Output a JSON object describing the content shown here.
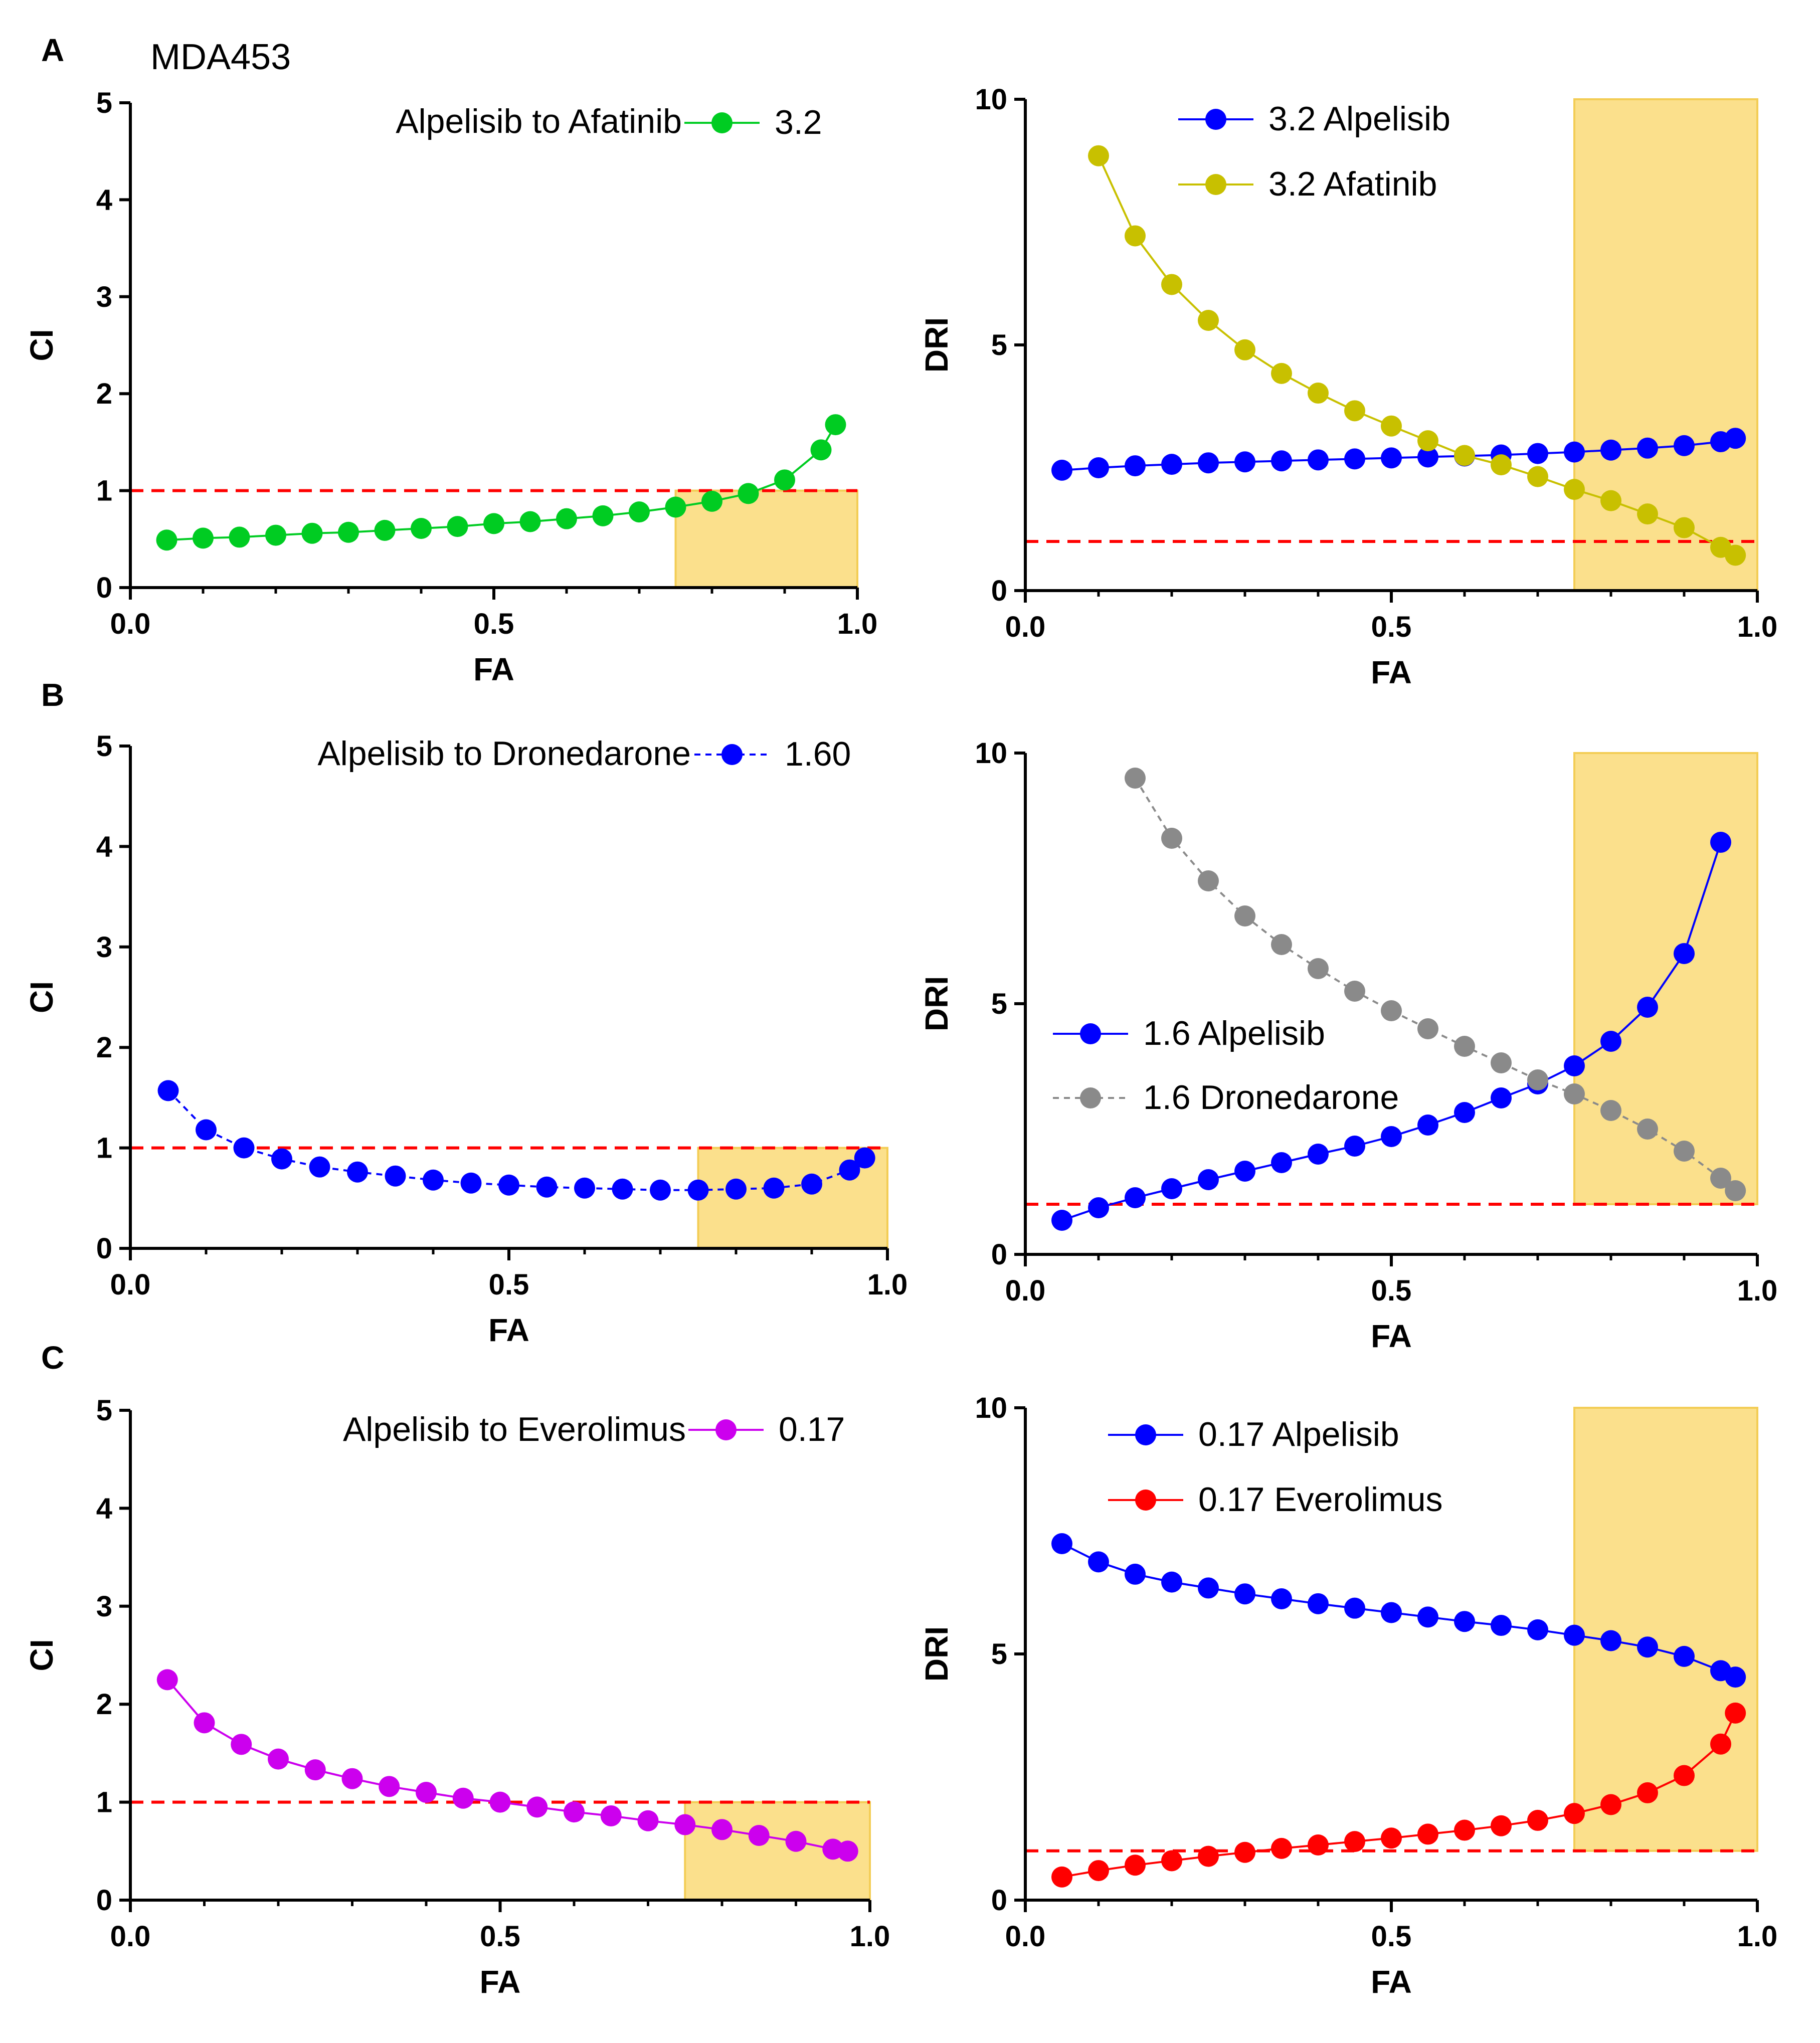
{
  "figure_title": "MDA453",
  "panel_labels": [
    "A",
    "B",
    "C"
  ],
  "colors": {
    "threshold": "#ff0000",
    "highlight": "#fbe08c",
    "highlight_edge": "#f3cd55",
    "green": "#00cc22",
    "blue": "#0000ff",
    "olive": "#c8c000",
    "gray": "#8a8a8a",
    "magenta": "#cc00ee",
    "red": "#ff0000"
  },
  "chart_data": [
    {
      "id": "A-CI",
      "type": "line",
      "panel": "A",
      "xlabel": "FA",
      "ylabel": "CI",
      "xlim": [
        0,
        1
      ],
      "ylim": [
        0,
        5
      ],
      "xticks": [
        "0.0",
        "0.5",
        "1.0"
      ],
      "yticks": [
        "0",
        "1",
        "2",
        "3",
        "4",
        "5"
      ],
      "threshold": 1,
      "highlight": {
        "x": [
          0.75,
          1.0
        ],
        "y": [
          0,
          1
        ]
      },
      "legend_title": "Alpelisib to Afatinib",
      "legend_position": "top-right",
      "series": [
        {
          "name": "3.2",
          "color": "#00cc22",
          "dashed": false,
          "x": [
            0.05,
            0.1,
            0.15,
            0.2,
            0.25,
            0.3,
            0.35,
            0.4,
            0.45,
            0.5,
            0.55,
            0.6,
            0.65,
            0.7,
            0.75,
            0.8,
            0.85,
            0.9,
            0.95,
            0.97
          ],
          "y": [
            0.49,
            0.51,
            0.52,
            0.54,
            0.56,
            0.57,
            0.59,
            0.61,
            0.63,
            0.66,
            0.68,
            0.71,
            0.74,
            0.78,
            0.83,
            0.89,
            0.97,
            1.11,
            1.42,
            1.68
          ]
        }
      ]
    },
    {
      "id": "A-DRI",
      "type": "line",
      "panel": "A",
      "xlabel": "FA",
      "ylabel": "DRI",
      "xlim": [
        0,
        1
      ],
      "ylim": [
        0,
        10
      ],
      "xticks": [
        "0.0",
        "0.5",
        "1.0"
      ],
      "yticks": [
        "0",
        "5",
        "10"
      ],
      "threshold": 1,
      "highlight": {
        "x": [
          0.75,
          1.0
        ],
        "y": [
          0,
          10
        ]
      },
      "legend_position": "top-center",
      "series": [
        {
          "name": "3.2 Alpelisib",
          "color": "#0000ff",
          "dashed": false,
          "x": [
            0.05,
            0.1,
            0.15,
            0.2,
            0.25,
            0.3,
            0.35,
            0.4,
            0.45,
            0.5,
            0.55,
            0.6,
            0.65,
            0.7,
            0.75,
            0.8,
            0.85,
            0.9,
            0.95,
            0.97
          ],
          "y": [
            2.45,
            2.5,
            2.54,
            2.57,
            2.6,
            2.62,
            2.64,
            2.66,
            2.68,
            2.7,
            2.72,
            2.74,
            2.76,
            2.79,
            2.82,
            2.86,
            2.9,
            2.95,
            3.03,
            3.1
          ]
        },
        {
          "name": "3.2 Afatinib",
          "color": "#c8c000",
          "dashed": false,
          "x": [
            0.1,
            0.15,
            0.2,
            0.25,
            0.3,
            0.35,
            0.4,
            0.45,
            0.5,
            0.55,
            0.6,
            0.65,
            0.7,
            0.75,
            0.8,
            0.85,
            0.9,
            0.95,
            0.97
          ],
          "y": [
            8.85,
            7.22,
            6.23,
            5.5,
            4.9,
            4.42,
            4.02,
            3.66,
            3.35,
            3.05,
            2.75,
            2.56,
            2.32,
            2.06,
            1.83,
            1.56,
            1.28,
            0.88,
            0.72
          ]
        }
      ]
    },
    {
      "id": "B-CI",
      "type": "line",
      "panel": "B",
      "xlabel": "FA",
      "ylabel": "CI",
      "xlim": [
        0,
        1
      ],
      "ylim": [
        0,
        5
      ],
      "xticks": [
        "0.0",
        "0.5",
        "1.0"
      ],
      "yticks": [
        "0",
        "1",
        "2",
        "3",
        "4",
        "5"
      ],
      "threshold": 1,
      "highlight": {
        "x": [
          0.75,
          1.0
        ],
        "y": [
          0,
          1
        ]
      },
      "legend_title": "Alpelisib to Dronedarone",
      "legend_position": "top-right",
      "series": [
        {
          "name": "1.60",
          "color": "#0000ff",
          "dashed": true,
          "x": [
            0.05,
            0.1,
            0.15,
            0.2,
            0.25,
            0.3,
            0.35,
            0.4,
            0.45,
            0.5,
            0.55,
            0.6,
            0.65,
            0.7,
            0.75,
            0.8,
            0.85,
            0.9,
            0.95,
            0.97
          ],
          "y": [
            1.57,
            1.18,
            1.0,
            0.89,
            0.81,
            0.76,
            0.72,
            0.68,
            0.65,
            0.63,
            0.61,
            0.6,
            0.59,
            0.58,
            0.58,
            0.59,
            0.6,
            0.64,
            0.78,
            0.9
          ]
        }
      ]
    },
    {
      "id": "B-DRI",
      "type": "line",
      "panel": "B",
      "xlabel": "FA",
      "ylabel": "DRI",
      "xlim": [
        0,
        1
      ],
      "ylim": [
        0,
        10
      ],
      "xticks": [
        "0.0",
        "0.5",
        "1.0"
      ],
      "yticks": [
        "0",
        "5",
        "10"
      ],
      "threshold": 1,
      "highlight": {
        "x": [
          0.75,
          1.0
        ],
        "y": [
          1,
          10
        ]
      },
      "legend_position": "center-left",
      "series": [
        {
          "name": "1.6 Alpelisib",
          "color": "#0000ff",
          "dashed": false,
          "x": [
            0.05,
            0.1,
            0.15,
            0.2,
            0.25,
            0.3,
            0.35,
            0.4,
            0.45,
            0.5,
            0.55,
            0.6,
            0.65,
            0.7,
            0.75,
            0.8,
            0.85,
            0.9,
            0.95
          ],
          "y": [
            0.68,
            0.93,
            1.13,
            1.31,
            1.49,
            1.66,
            1.83,
            2.0,
            2.16,
            2.35,
            2.58,
            2.83,
            3.12,
            3.4,
            3.76,
            4.25,
            4.93,
            6.0,
            8.22
          ]
        },
        {
          "name": "1.6 Dronedarone",
          "color": "#8a8a8a",
          "dashed": true,
          "x": [
            0.15,
            0.2,
            0.25,
            0.3,
            0.35,
            0.4,
            0.45,
            0.5,
            0.55,
            0.6,
            0.65,
            0.7,
            0.75,
            0.8,
            0.85,
            0.9,
            0.95,
            0.97
          ],
          "y": [
            9.5,
            8.3,
            7.45,
            6.75,
            6.18,
            5.7,
            5.25,
            4.86,
            4.5,
            4.15,
            3.82,
            3.48,
            3.2,
            2.87,
            2.5,
            2.06,
            1.52,
            1.27
          ]
        }
      ]
    },
    {
      "id": "C-CI",
      "type": "line",
      "panel": "C",
      "xlabel": "FA",
      "ylabel": "CI",
      "xlim": [
        0,
        1
      ],
      "ylim": [
        0,
        5
      ],
      "xticks": [
        "0.0",
        "0.5",
        "1.0"
      ],
      "yticks": [
        "0",
        "1",
        "2",
        "3",
        "4",
        "5"
      ],
      "threshold": 1,
      "highlight": {
        "x": [
          0.75,
          1.0
        ],
        "y": [
          0,
          1
        ]
      },
      "legend_title": "Alpelisib to Everolimus",
      "legend_position": "top-right",
      "series": [
        {
          "name": "0.17",
          "color": "#cc00ee",
          "dashed": false,
          "x": [
            0.05,
            0.1,
            0.15,
            0.2,
            0.25,
            0.3,
            0.35,
            0.4,
            0.45,
            0.5,
            0.55,
            0.6,
            0.65,
            0.7,
            0.75,
            0.8,
            0.85,
            0.9,
            0.95,
            0.97
          ],
          "y": [
            2.25,
            1.81,
            1.59,
            1.44,
            1.33,
            1.24,
            1.16,
            1.1,
            1.04,
            1.0,
            0.95,
            0.9,
            0.86,
            0.81,
            0.77,
            0.72,
            0.66,
            0.6,
            0.52,
            0.5
          ]
        }
      ]
    },
    {
      "id": "C-DRI",
      "type": "line",
      "panel": "C",
      "xlabel": "FA",
      "ylabel": "DRI",
      "xlim": [
        0,
        1
      ],
      "ylim": [
        0,
        10
      ],
      "xticks": [
        "0.0",
        "0.5",
        "1.0"
      ],
      "yticks": [
        "0",
        "5",
        "10"
      ],
      "threshold": 1,
      "highlight": {
        "x": [
          0.75,
          1.0
        ],
        "y": [
          1,
          10
        ]
      },
      "legend_position": "top-center",
      "series": [
        {
          "name": "0.17 Alpelisib",
          "color": "#0000ff",
          "dashed": false,
          "x": [
            0.05,
            0.1,
            0.15,
            0.2,
            0.25,
            0.3,
            0.35,
            0.4,
            0.45,
            0.5,
            0.55,
            0.6,
            0.65,
            0.7,
            0.75,
            0.8,
            0.85,
            0.9,
            0.95,
            0.97
          ],
          "y": [
            7.24,
            6.87,
            6.62,
            6.46,
            6.34,
            6.22,
            6.12,
            6.02,
            5.93,
            5.84,
            5.75,
            5.66,
            5.58,
            5.49,
            5.38,
            5.27,
            5.14,
            4.95,
            4.66,
            4.53
          ]
        },
        {
          "name": "0.17 Everolimus",
          "color": "#ff0000",
          "dashed": false,
          "x": [
            0.05,
            0.1,
            0.15,
            0.2,
            0.25,
            0.3,
            0.35,
            0.4,
            0.45,
            0.5,
            0.55,
            0.6,
            0.65,
            0.7,
            0.75,
            0.8,
            0.85,
            0.9,
            0.95,
            0.97
          ],
          "y": [
            0.47,
            0.6,
            0.71,
            0.8,
            0.89,
            0.97,
            1.05,
            1.12,
            1.19,
            1.26,
            1.34,
            1.42,
            1.51,
            1.62,
            1.76,
            1.94,
            2.18,
            2.53,
            3.17,
            3.8
          ]
        }
      ]
    }
  ]
}
